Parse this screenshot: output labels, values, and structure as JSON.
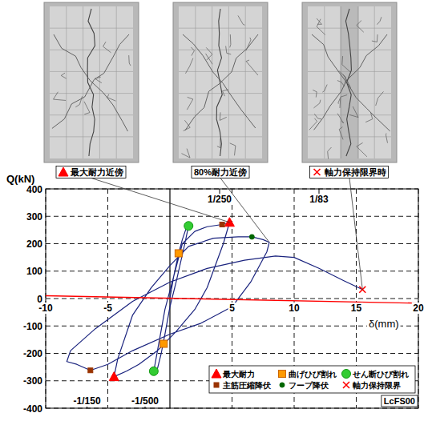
{
  "chart_data": {
    "type": "line",
    "x_label": "δ(mm)",
    "y_label": "Q(kN)",
    "xlim": [
      -10,
      20
    ],
    "xticks": [
      -10,
      -5,
      5,
      10,
      15,
      20
    ],
    "ylim": [
      -400,
      400
    ],
    "yticks": [
      -400,
      -300,
      -200,
      -100,
      0,
      100,
      200,
      300,
      400
    ],
    "grid": true,
    "legend": "lower right",
    "id_label": "LcFS00",
    "drift_labels": [
      {
        "value": 4,
        "label": "1/250"
      },
      {
        "value": 12,
        "label": "1/83"
      },
      {
        "value": -6.67,
        "label": "-1/150"
      },
      {
        "value": -2,
        "label": "-1/500"
      }
    ],
    "annotations": [
      {
        "text": "最大耐力近傍",
        "marker": "triangle",
        "color": "#ff0000",
        "x": 4.8,
        "y": 278
      },
      {
        "text": "80%耐力近傍",
        "x": 8.0,
        "y": 205
      },
      {
        "text": "軸力保持限界時",
        "marker": "x",
        "color": "#ff0000",
        "x": 15.5,
        "y": 33
      }
    ],
    "series": [
      {
        "type": "line",
        "color": "#1a237e",
        "x": [
          0,
          0.3,
          0.7,
          1.0,
          1.3,
          1.5,
          1.2,
          0.5,
          0,
          -0.4,
          -0.7,
          -1.0,
          -1.3,
          -1.0,
          -0.4,
          0.3,
          1.0,
          2.0,
          3.0,
          4.2,
          4.8,
          4.3,
          3.0,
          2.0,
          0.5,
          -1.0,
          -2.5,
          -3.5,
          -4.5,
          -4.2,
          -3.0,
          -1.5,
          0,
          1.5,
          3.5,
          5.5,
          6.6,
          7.5,
          8.0,
          7.8,
          6.5,
          5.0,
          2.5,
          0,
          -3.0,
          -5.0,
          -6.4,
          -7.5,
          -8.3,
          -8.0,
          -6.0,
          -3.0,
          0,
          3.0,
          6.0,
          8.5,
          10.0,
          12.0,
          14.0,
          15.5
        ],
        "values": [
          0,
          80,
          165,
          215,
          255,
          265,
          200,
          60,
          -30,
          -130,
          -200,
          -255,
          -265,
          -190,
          -40,
          80,
          200,
          245,
          262,
          270,
          278,
          200,
          40,
          -40,
          -120,
          -190,
          -240,
          -265,
          -285,
          -220,
          -60,
          40,
          120,
          190,
          220,
          225,
          225,
          215,
          205,
          170,
          60,
          -30,
          -90,
          -130,
          -190,
          -240,
          -262,
          -240,
          -230,
          -190,
          -110,
          -10,
          60,
          110,
          140,
          155,
          150,
          110,
          65,
          33
        ]
      },
      {
        "type": "line",
        "color": "#ff0000",
        "x": [
          -10,
          20
        ],
        "values": [
          10,
          -17
        ]
      },
      {
        "type": "scatter",
        "name": "最大耐力",
        "marker": "triangle",
        "color": "#ff0000",
        "x": [
          4.8,
          -4.5
        ],
        "values": [
          278,
          -285
        ]
      },
      {
        "type": "scatter",
        "name": "曲げひび割れ",
        "marker": "square",
        "color": "#ff9900",
        "x": [
          0.7,
          -0.5
        ],
        "values": [
          165,
          -165
        ]
      },
      {
        "type": "scatter",
        "name": "せん断ひび割れ",
        "marker": "circle",
        "color": "#33cc33",
        "x": [
          1.5,
          -1.3
        ],
        "values": [
          265,
          -265
        ]
      },
      {
        "type": "scatter",
        "name": "主筋圧縮降伏",
        "marker": "small_square",
        "color": "#993300",
        "x": [
          4.2,
          -6.4
        ],
        "values": [
          270,
          -262
        ]
      },
      {
        "type": "scatter",
        "name": "フープ降伏",
        "marker": "dot",
        "color": "#006600",
        "x": [
          6.6
        ],
        "values": [
          225
        ]
      },
      {
        "type": "scatter",
        "name": "軸力保持限界",
        "marker": "x",
        "color": "#ff0000",
        "x": [
          15.5
        ],
        "values": [
          33
        ]
      }
    ]
  }
}
